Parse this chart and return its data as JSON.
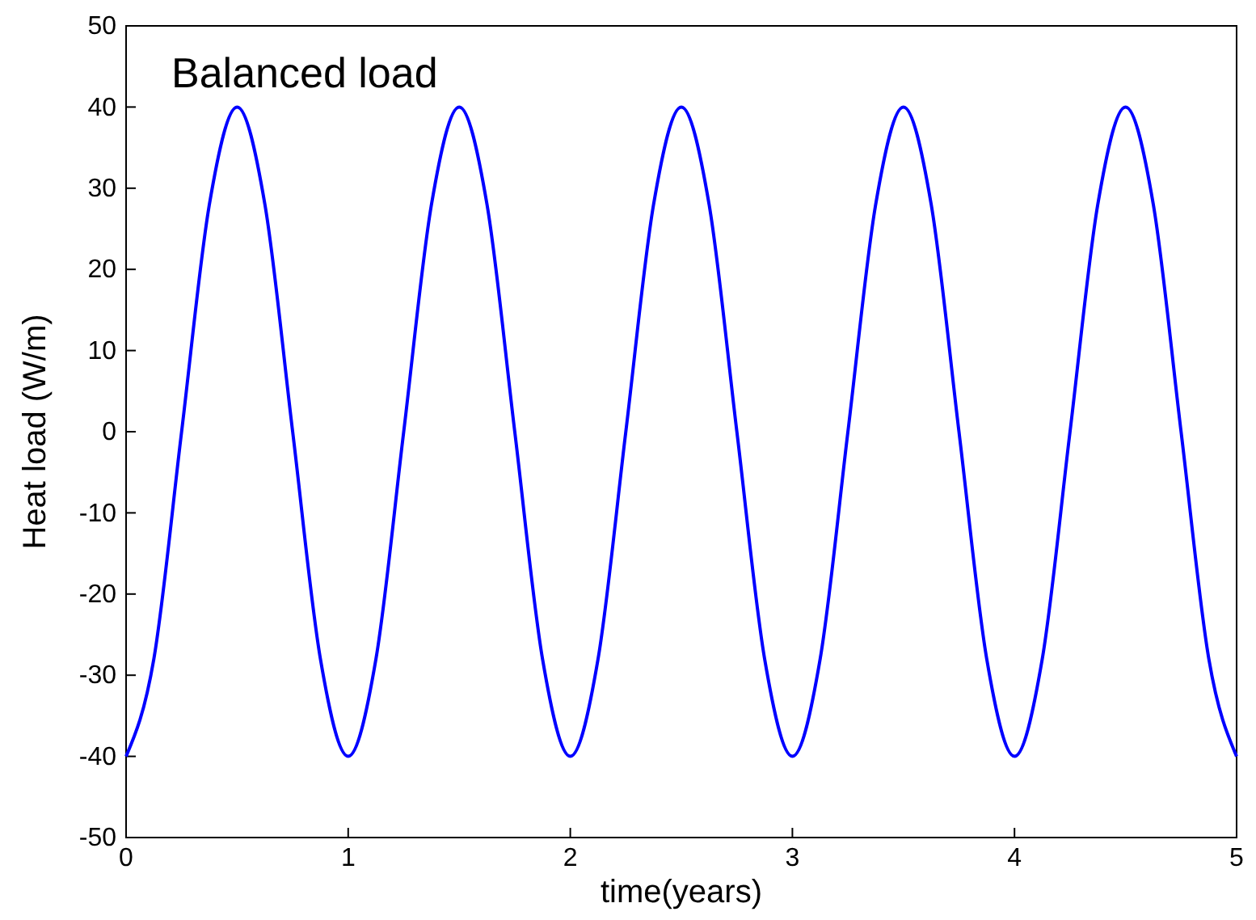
{
  "chart_data": {
    "type": "line",
    "xlabel": "time(years)",
    "ylabel": "Heat load (W/m)",
    "annotations": [
      "Balanced load"
    ],
    "x": [
      0,
      0.125,
      0.25,
      0.375,
      0.5,
      0.625,
      0.75,
      0.875,
      1,
      1.125,
      1.25,
      1.375,
      1.5,
      1.625,
      1.75,
      1.875,
      2,
      2.125,
      2.25,
      2.375,
      2.5,
      2.625,
      2.75,
      2.875,
      3,
      3.125,
      3.25,
      3.375,
      3.5,
      3.625,
      3.75,
      3.875,
      4,
      4.125,
      4.25,
      4.375,
      4.5,
      4.625,
      4.75,
      4.875,
      5
    ],
    "series": [
      {
        "color": "#0000ff",
        "values": [
          -40,
          -28,
          0,
          28,
          40,
          28,
          0,
          -28,
          -40,
          -28,
          0,
          28,
          40,
          28,
          0,
          -28,
          -40,
          -28,
          0,
          28,
          40,
          28,
          0,
          -28,
          -40,
          -28,
          0,
          28,
          40,
          28,
          0,
          -28,
          -40,
          -28,
          0,
          28,
          40,
          28,
          0,
          -28,
          -40
        ]
      }
    ],
    "xlim": [
      0,
      5
    ],
    "xticks": [
      0,
      1,
      2,
      3,
      4,
      5
    ],
    "ylim": [
      -50,
      50
    ],
    "yticks": [
      -50,
      -40,
      -30,
      -20,
      -10,
      0,
      10,
      20,
      30,
      40,
      50
    ],
    "grid": false,
    "marker": "none",
    "line_style": "solid"
  }
}
